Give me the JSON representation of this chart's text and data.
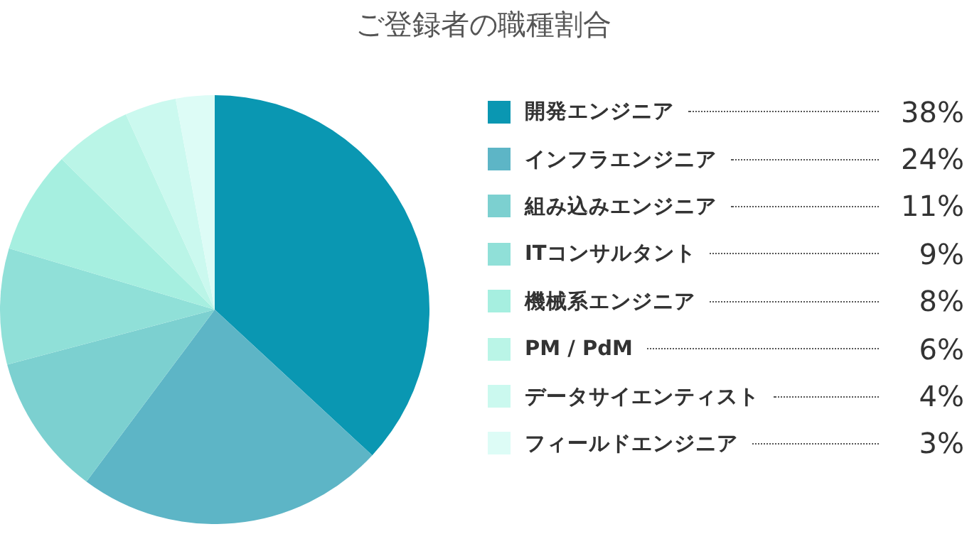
{
  "chart_data": {
    "type": "pie",
    "title": "ご登録者の職種割合",
    "categories": [
      "開発エンジニア",
      "インフラエンジニア",
      "組み込みエンジニア",
      "ITコンサルタント",
      "機械系エンジニア",
      "PM / PdM",
      "データサイエンティスト",
      "フィールドエンジニア"
    ],
    "values": [
      38,
      24,
      11,
      9,
      8,
      6,
      4,
      3
    ],
    "colors": [
      "#0a97b2",
      "#5db5c6",
      "#7cd0d0",
      "#90e0d8",
      "#a6efe0",
      "#baf5e7",
      "#cbf9ef",
      "#ddfcf6"
    ],
    "value_labels": [
      "38%",
      "24%",
      "11%",
      "9%",
      "8%",
      "6%",
      "4%",
      "3%"
    ],
    "legend": "right"
  }
}
